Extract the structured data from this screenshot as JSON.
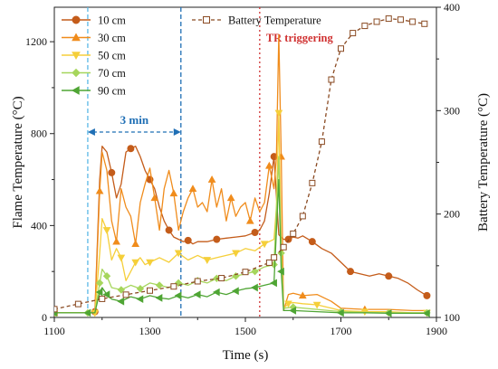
{
  "chart_data": {
    "type": "line",
    "xlabel": "Time (s)",
    "ylabel_left": "Flame Temperature (°C)",
    "ylabel_right": "Battery Temperature (°C)",
    "xlim": [
      1100,
      1900
    ],
    "ylim_left": [
      0,
      1350
    ],
    "ylim_right": [
      100,
      400
    ],
    "x_ticks": [
      1100,
      1300,
      1500,
      1700,
      1900
    ],
    "y_ticks_left": [
      0,
      400,
      800,
      1200
    ],
    "y_ticks_right": [
      100,
      200,
      300,
      400
    ],
    "grid": false,
    "legend_placement": "top-left and top-center",
    "annotations": {
      "interval_label": "3 min",
      "interval_start": 1170,
      "interval_end": 1365,
      "tr_label": "TR triggering",
      "tr_time": 1530
    },
    "colors": {
      "10 cm": "#c45c1a",
      "30 cm": "#f08c1c",
      "50 cm": "#f5cf3a",
      "70 cm": "#a6d65c",
      "90 cm": "#4fa534",
      "Battery Temperature": "#8a4a22",
      "interval_light": "#5bb8e6",
      "interval_dark": "#1f6fb5",
      "tr_line": "#d03232"
    },
    "series": [
      {
        "name": "10 cm",
        "axis": "left",
        "marker": "circle",
        "x": [
          1100,
          1165,
          1170,
          1180,
          1185,
          1195,
          1200,
          1210,
          1220,
          1230,
          1240,
          1250,
          1260,
          1270,
          1280,
          1290,
          1300,
          1310,
          1320,
          1330,
          1340,
          1350,
          1360,
          1370,
          1380,
          1390,
          1400,
          1420,
          1440,
          1460,
          1480,
          1500,
          1520,
          1530,
          1540,
          1550,
          1560,
          1570,
          1575,
          1580,
          1590,
          1600,
          1610,
          1620,
          1640,
          1660,
          1680,
          1700,
          1720,
          1740,
          1760,
          1780,
          1800,
          1820,
          1840,
          1860,
          1880
        ],
        "y": [
          20,
          20,
          20,
          20,
          25,
          600,
          745,
          720,
          630,
          520,
          580,
          720,
          735,
          745,
          700,
          640,
          600,
          560,
          480,
          420,
          380,
          350,
          340,
          330,
          335,
          320,
          330,
          330,
          340,
          345,
          350,
          355,
          370,
          380,
          420,
          540,
          700,
          360,
          350,
          340,
          340,
          350,
          345,
          355,
          330,
          300,
          280,
          240,
          200,
          190,
          180,
          190,
          180,
          170,
          150,
          120,
          95
        ]
      },
      {
        "name": "30 cm",
        "axis": "left",
        "marker": "triangle-up",
        "x": [
          1100,
          1165,
          1170,
          1185,
          1195,
          1200,
          1210,
          1220,
          1230,
          1240,
          1250,
          1260,
          1270,
          1280,
          1290,
          1300,
          1310,
          1320,
          1330,
          1340,
          1350,
          1360,
          1370,
          1380,
          1390,
          1400,
          1410,
          1420,
          1430,
          1440,
          1450,
          1460,
          1470,
          1480,
          1490,
          1500,
          1510,
          1520,
          1530,
          1540,
          1550,
          1560,
          1565,
          1570,
          1575,
          1580,
          1590,
          1600,
          1620,
          1650,
          1680,
          1700,
          1750,
          1800,
          1850,
          1880
        ],
        "y": [
          20,
          20,
          20,
          20,
          550,
          720,
          640,
          420,
          330,
          560,
          480,
          440,
          320,
          500,
          580,
          650,
          520,
          380,
          560,
          640,
          540,
          380,
          460,
          520,
          560,
          480,
          500,
          460,
          600,
          480,
          560,
          420,
          520,
          440,
          480,
          500,
          420,
          520,
          460,
          500,
          660,
          560,
          700,
          1230,
          700,
          30,
          100,
          105,
          95,
          100,
          70,
          40,
          35,
          35,
          30,
          30
        ]
      },
      {
        "name": "50 cm",
        "axis": "left",
        "marker": "triangle-down",
        "x": [
          1100,
          1165,
          1170,
          1185,
          1195,
          1200,
          1210,
          1220,
          1230,
          1240,
          1250,
          1260,
          1270,
          1280,
          1290,
          1300,
          1320,
          1340,
          1360,
          1380,
          1400,
          1420,
          1440,
          1460,
          1480,
          1500,
          1520,
          1540,
          1560,
          1565,
          1570,
          1575,
          1580,
          1590,
          1600,
          1620,
          1650,
          1680,
          1700,
          1750,
          1800,
          1850,
          1880
        ],
        "y": [
          20,
          20,
          20,
          20,
          280,
          430,
          380,
          250,
          300,
          260,
          160,
          200,
          240,
          260,
          230,
          240,
          260,
          240,
          280,
          250,
          270,
          250,
          260,
          270,
          280,
          300,
          290,
          320,
          340,
          480,
          890,
          300,
          40,
          60,
          65,
          60,
          55,
          40,
          30,
          25,
          25,
          20,
          20
        ]
      },
      {
        "name": "70 cm",
        "axis": "left",
        "marker": "diamond",
        "x": [
          1100,
          1165,
          1170,
          1185,
          1195,
          1200,
          1210,
          1220,
          1240,
          1260,
          1280,
          1300,
          1320,
          1340,
          1360,
          1380,
          1400,
          1420,
          1440,
          1460,
          1480,
          1500,
          1520,
          1540,
          1560,
          1570,
          1575,
          1580,
          1600,
          1650,
          1700,
          1750,
          1800,
          1850,
          1880
        ],
        "y": [
          20,
          20,
          20,
          20,
          150,
          210,
          180,
          130,
          120,
          140,
          125,
          150,
          140,
          130,
          150,
          140,
          160,
          150,
          170,
          160,
          180,
          190,
          200,
          220,
          230,
          700,
          280,
          40,
          45,
          35,
          25,
          22,
          20,
          20,
          20
        ]
      },
      {
        "name": "90 cm",
        "axis": "left",
        "marker": "triangle-left",
        "x": [
          1100,
          1165,
          1170,
          1185,
          1195,
          1200,
          1210,
          1220,
          1240,
          1260,
          1280,
          1300,
          1320,
          1340,
          1360,
          1380,
          1400,
          1420,
          1440,
          1460,
          1480,
          1500,
          1520,
          1540,
          1560,
          1570,
          1575,
          1580,
          1600,
          1650,
          1700,
          1750,
          1800,
          1850,
          1880
        ],
        "y": [
          20,
          20,
          20,
          20,
          110,
          130,
          100,
          80,
          70,
          90,
          80,
          95,
          85,
          80,
          95,
          85,
          100,
          90,
          110,
          100,
          115,
          125,
          130,
          140,
          150,
          600,
          200,
          30,
          30,
          25,
          20,
          20,
          18,
          18,
          18
        ]
      },
      {
        "name": "Battery Temperature",
        "axis": "right",
        "marker": "square",
        "x": [
          1100,
          1150,
          1200,
          1250,
          1300,
          1350,
          1400,
          1450,
          1500,
          1550,
          1560,
          1580,
          1600,
          1620,
          1640,
          1660,
          1680,
          1700,
          1725,
          1750,
          1775,
          1800,
          1825,
          1850,
          1875
        ],
        "y": [
          108,
          113,
          118,
          122,
          126,
          130,
          135,
          138,
          144,
          153,
          158,
          168,
          181,
          198,
          230,
          270,
          330,
          360,
          375,
          382,
          386,
          389,
          388,
          386,
          384
        ]
      }
    ]
  }
}
